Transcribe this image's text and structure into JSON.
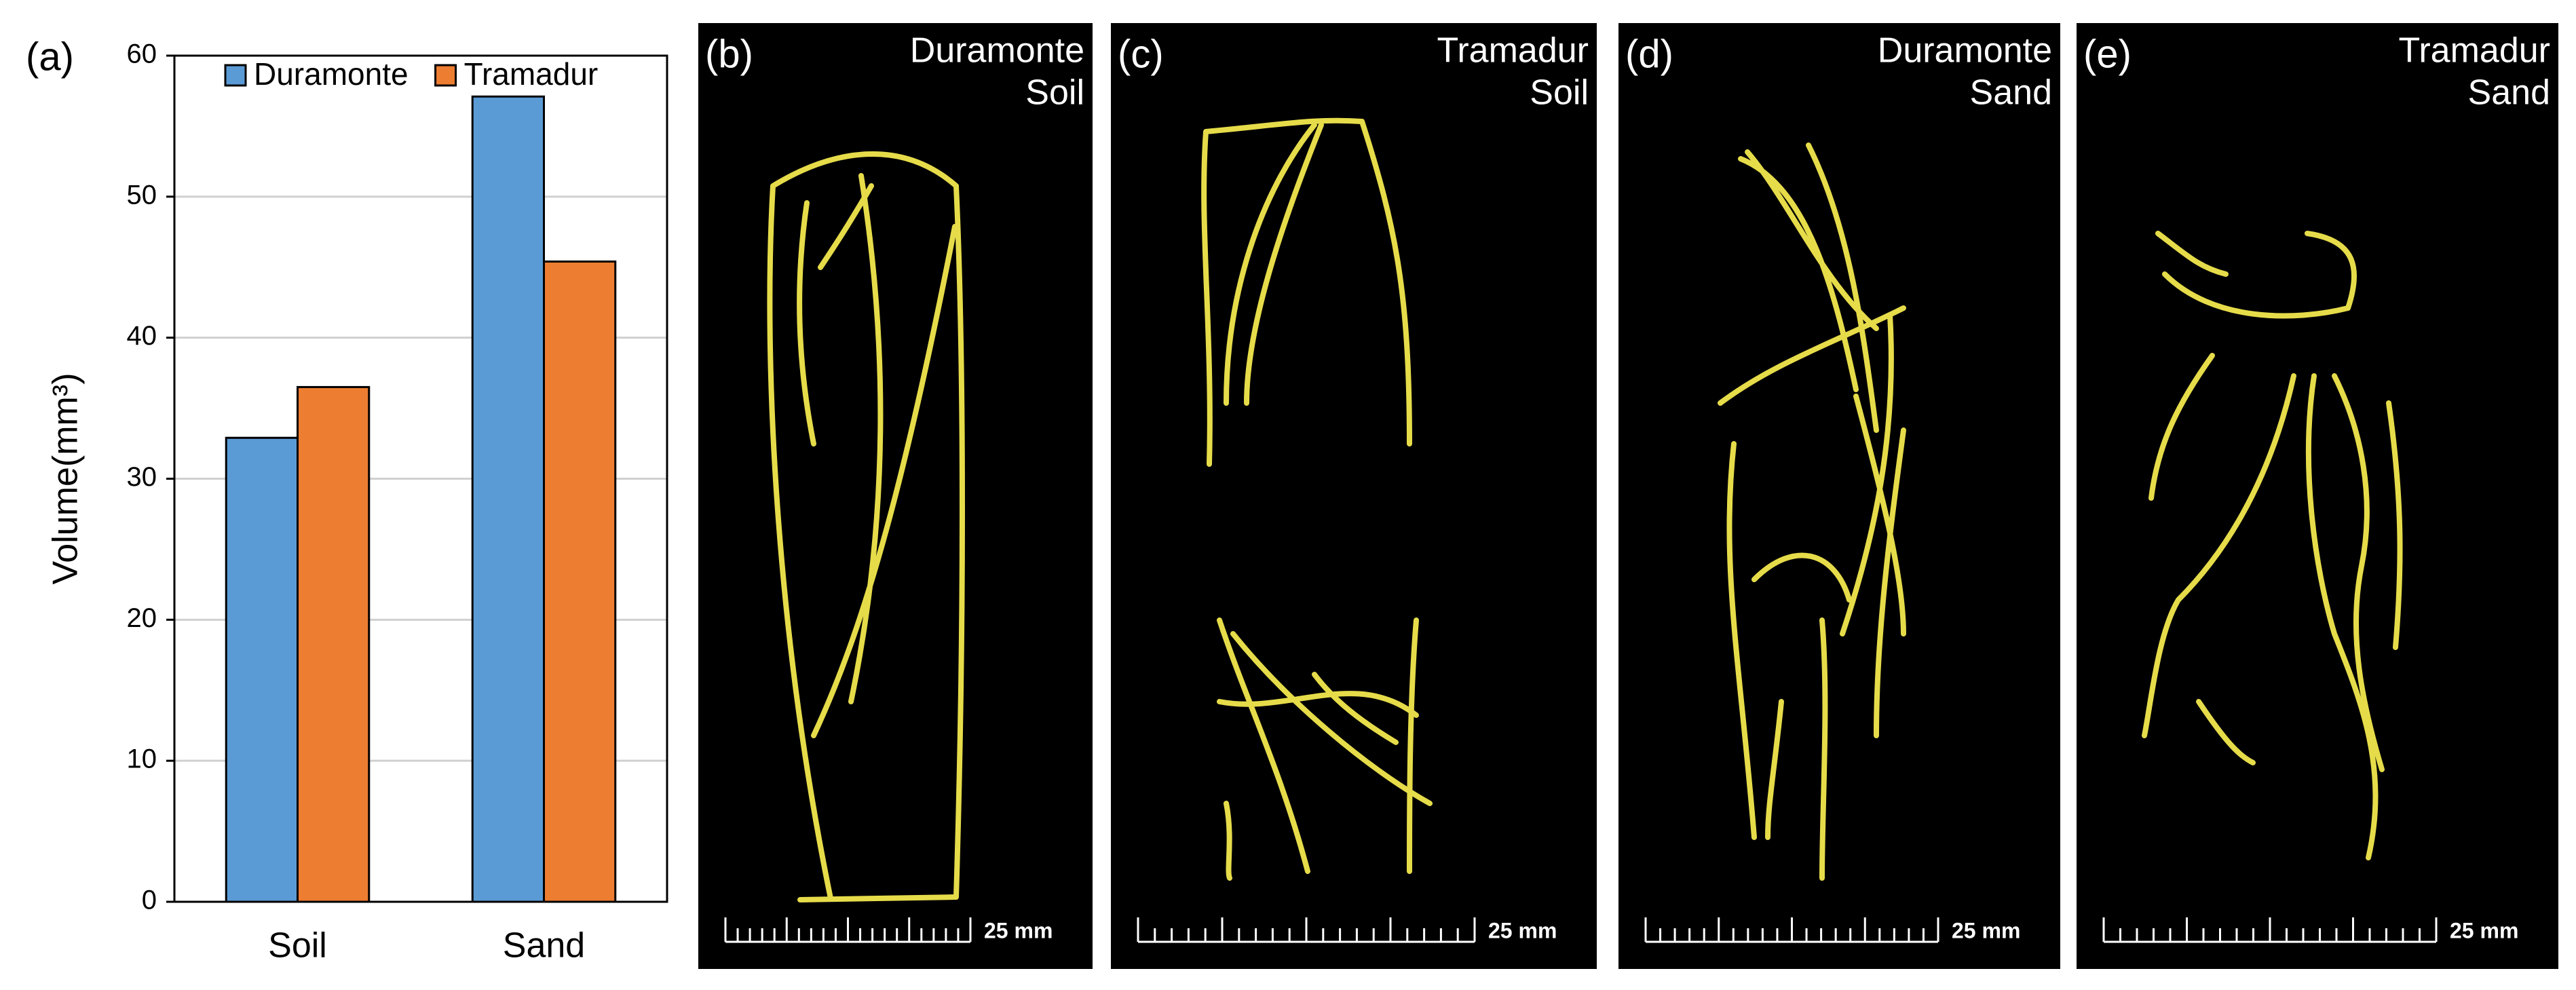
{
  "chart_data": {
    "type": "bar",
    "label": "(a)",
    "y_label": "Volume(mm³)",
    "categories": [
      "Soil",
      "Sand"
    ],
    "series": [
      {
        "name": "Duramonte",
        "color": "#5b9bd5",
        "values": [
          32.9,
          57.1
        ]
      },
      {
        "name": "Tramadur",
        "color": "#ed7d31",
        "values": [
          36.5,
          45.4
        ]
      }
    ],
    "ylim": [
      0,
      60
    ],
    "yticks": [
      0,
      10,
      20,
      30,
      40,
      50,
      60
    ],
    "grid": true,
    "legend": "top"
  },
  "panels": [
    {
      "label": "(b)",
      "cultivar": "Duramonte",
      "medium": "Soil",
      "scale": "25 mm"
    },
    {
      "label": "(c)",
      "cultivar": "Tramadur",
      "medium": "Soil",
      "scale": "25 mm"
    },
    {
      "label": "(d)",
      "cultivar": "Duramonte",
      "medium": "Sand",
      "scale": "25 mm"
    },
    {
      "label": "(e)",
      "cultivar": "Tramadur",
      "medium": "Sand",
      "scale": "25 mm"
    }
  ]
}
